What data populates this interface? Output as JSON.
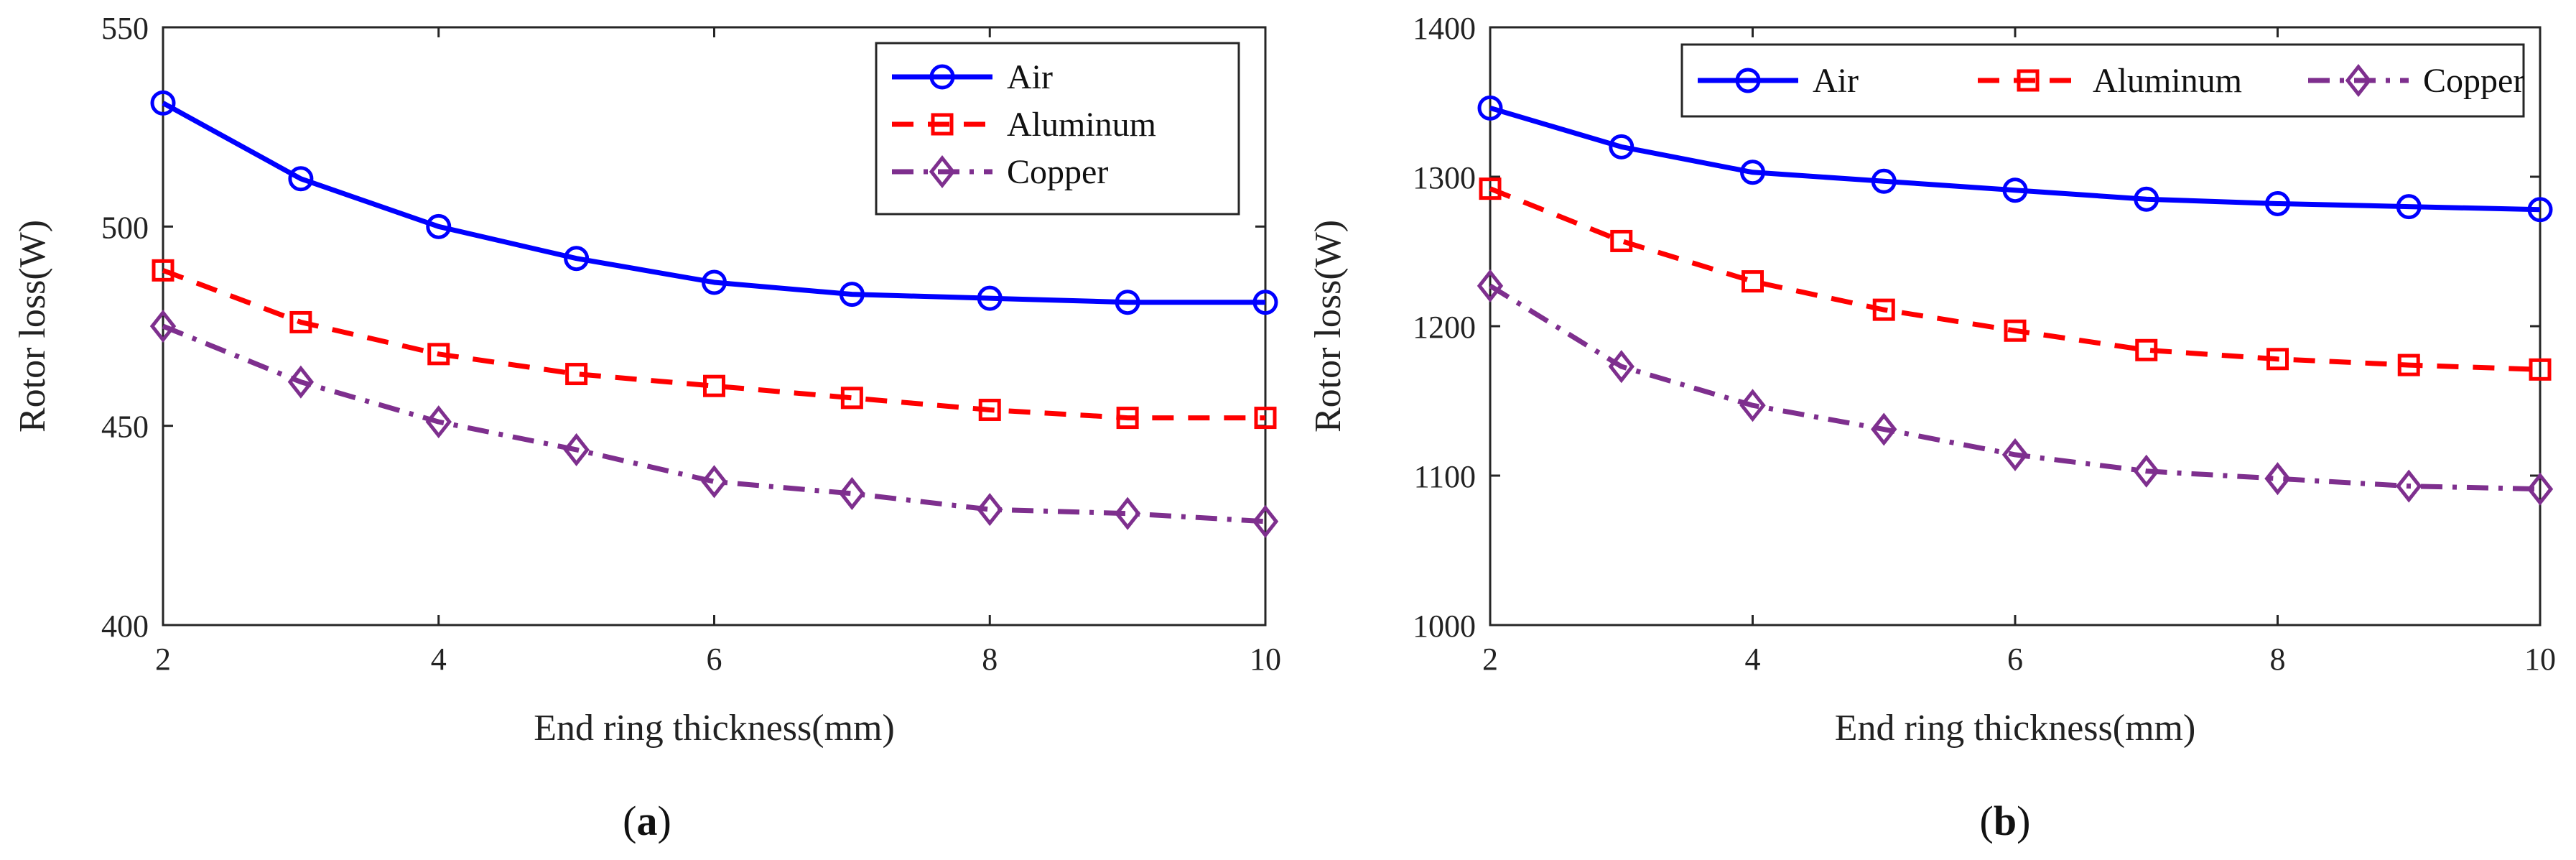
{
  "chart_data": [
    {
      "type": "line",
      "panel": "a",
      "caption": {
        "open": "(",
        "letter": "a",
        "close": ")"
      },
      "xlabel": "End ring thickness(mm)",
      "ylabel": "Rotor loss(W)",
      "xlim": [
        2,
        10
      ],
      "ylim": [
        400,
        550
      ],
      "xticks": [
        2,
        4,
        6,
        8,
        10
      ],
      "yticks": [
        400,
        450,
        500,
        550
      ],
      "x": [
        2,
        3,
        4,
        5,
        6,
        7,
        8,
        9,
        10
      ],
      "legend_position": "top-right",
      "legend_layout": "vertical",
      "series": [
        {
          "name": "Air",
          "color": "#0000ff",
          "marker": "circle",
          "dash": "solid",
          "values": [
            531,
            512,
            500,
            492,
            486,
            483,
            482,
            481,
            481
          ]
        },
        {
          "name": "Aluminum",
          "color": "#ff0000",
          "marker": "square",
          "dash": "dashed",
          "values": [
            489,
            476,
            468,
            463,
            460,
            457,
            454,
            452,
            452
          ]
        },
        {
          "name": "Copper",
          "color": "#7e2f8e",
          "marker": "diamond",
          "dash": "dashdot",
          "values": [
            475,
            461,
            451,
            444,
            436,
            433,
            429,
            428,
            426
          ]
        }
      ]
    },
    {
      "type": "line",
      "panel": "b",
      "caption": {
        "open": "(",
        "letter": "b",
        "close": ")"
      },
      "xlabel": "End ring thickness(mm)",
      "ylabel": "Rotor loss(W)",
      "xlim": [
        2,
        10
      ],
      "ylim": [
        1000,
        1400
      ],
      "xticks": [
        2,
        4,
        6,
        8,
        10
      ],
      "yticks": [
        1000,
        1100,
        1200,
        1300,
        1400
      ],
      "x": [
        2,
        3,
        4,
        5,
        6,
        7,
        8,
        9,
        10
      ],
      "legend_position": "top",
      "legend_layout": "horizontal",
      "series": [
        {
          "name": "Air",
          "color": "#0000ff",
          "marker": "circle",
          "dash": "solid",
          "values": [
            1346,
            1320,
            1303,
            1297,
            1291,
            1285,
            1282,
            1280,
            1278
          ]
        },
        {
          "name": "Aluminum",
          "color": "#ff0000",
          "marker": "square",
          "dash": "dashed",
          "values": [
            1292,
            1257,
            1230,
            1211,
            1197,
            1184,
            1178,
            1174,
            1171
          ]
        },
        {
          "name": "Copper",
          "color": "#7e2f8e",
          "marker": "diamond",
          "dash": "dashdot",
          "values": [
            1227,
            1173,
            1147,
            1131,
            1114,
            1103,
            1098,
            1093,
            1091
          ]
        }
      ]
    }
  ]
}
